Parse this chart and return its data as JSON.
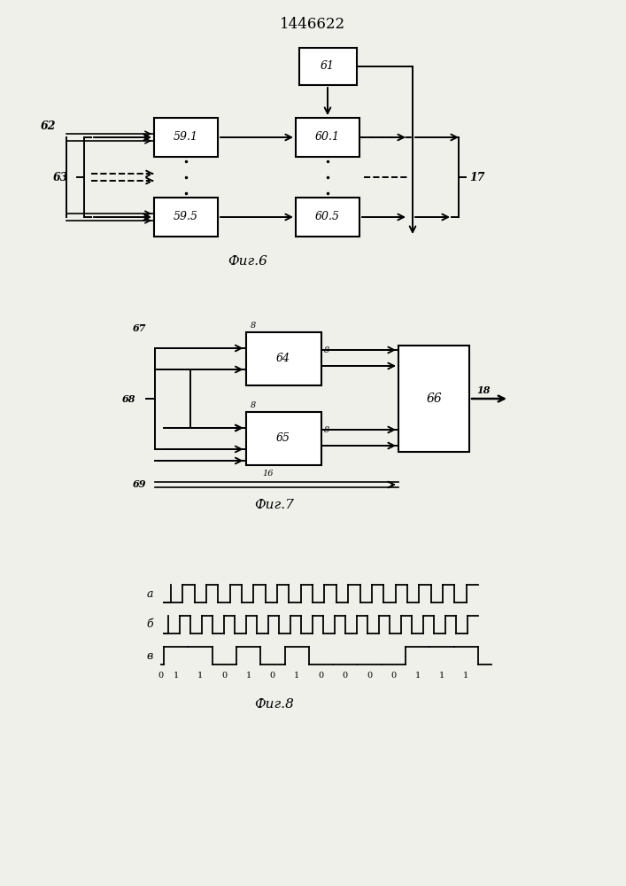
{
  "title": "1446622",
  "bg_color": "#f0f0eb",
  "fig6_caption": "Фиг.6",
  "fig7_caption": "Фиг.7",
  "fig8_caption": "Фиг.8",
  "fig8_data": [
    1,
    1,
    0,
    1,
    0,
    1,
    0,
    0,
    0,
    0,
    1,
    1,
    1
  ]
}
